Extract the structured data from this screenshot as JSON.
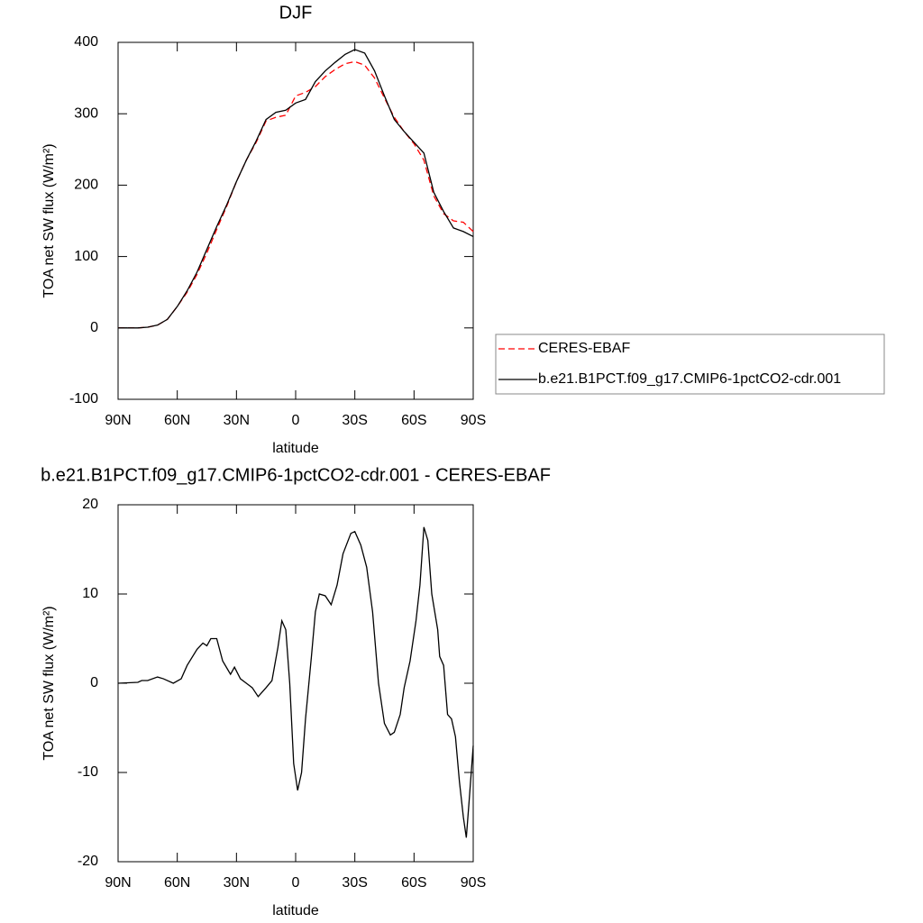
{
  "chart_data": [
    {
      "type": "line",
      "title": "DJF",
      "xlabel": "latitude",
      "ylabel": "TOA net SW flux (W/m²)",
      "x": [
        90,
        85,
        80,
        75,
        70,
        65,
        60,
        55,
        50,
        45,
        40,
        35,
        30,
        25,
        20,
        15,
        10,
        5,
        0,
        -5,
        -10,
        -15,
        -20,
        -25,
        -30,
        -35,
        -40,
        -45,
        -50,
        -55,
        -60,
        -65,
        -70,
        -75,
        -80,
        -85,
        -90
      ],
      "series": [
        {
          "name": "CERES-EBAF",
          "color": "#ff0000",
          "linestyle": "dashed",
          "values": [
            0,
            0,
            0,
            1,
            4,
            12,
            30,
            50,
            75,
            105,
            138,
            170,
            205,
            235,
            260,
            290,
            295,
            298,
            325,
            330,
            338,
            352,
            362,
            370,
            373,
            368,
            350,
            322,
            295,
            275,
            258,
            235,
            185,
            160,
            150,
            148,
            135
          ]
        },
        {
          "name": "b.e21.B1PCT.f09_g17.CMIP6-1pctCO2-cdr.001",
          "color": "#000000",
          "linestyle": "solid",
          "values": [
            0,
            0,
            0,
            1,
            4,
            12,
            30,
            52,
            78,
            110,
            142,
            172,
            205,
            235,
            262,
            292,
            302,
            305,
            315,
            320,
            345,
            360,
            372,
            383,
            390,
            385,
            360,
            325,
            292,
            275,
            260,
            245,
            190,
            163,
            140,
            135,
            128
          ]
        }
      ],
      "xlim": [
        90,
        -90
      ],
      "xticks": [
        {
          "value": 90,
          "label": "90N"
        },
        {
          "value": 60,
          "label": "60N"
        },
        {
          "value": 30,
          "label": "30N"
        },
        0,
        {
          "value": -30,
          "label": "30S"
        },
        {
          "value": -60,
          "label": "60S"
        },
        {
          "value": -90,
          "label": "90S"
        }
      ],
      "ylim": [
        -100,
        400
      ],
      "yticks": [
        -100,
        0,
        100,
        200,
        300,
        400
      ],
      "legend": "right"
    },
    {
      "type": "line",
      "title": "b.e21.B1PCT.f09_g17.CMIP6-1pctCO2-cdr.001 - CERES-EBAF",
      "xlabel": "latitude",
      "ylabel": "TOA net SW flux (W/m²)",
      "x": [
        90,
        80,
        78,
        75,
        70,
        67,
        62,
        58,
        55,
        50,
        47,
        45,
        43,
        40,
        37,
        33,
        31,
        28,
        25,
        22,
        19,
        15,
        12,
        9,
        7,
        5,
        3,
        1,
        -1,
        -3,
        -5,
        -8,
        -10,
        -12,
        -15,
        -18,
        -21,
        -24,
        -28,
        -30,
        -33,
        -36,
        -39,
        -42,
        -45,
        -48,
        -50,
        -53,
        -55,
        -58,
        -61,
        -63,
        -65,
        -67,
        -69,
        -72,
        -73,
        -75,
        -77,
        -79,
        -81,
        -83,
        -85,
        -86.5,
        -88,
        -90
      ],
      "series": [
        {
          "color": "#000000",
          "linestyle": "solid",
          "values": [
            0,
            0.1,
            0.3,
            0.3,
            0.7,
            0.5,
            0,
            0.5,
            2,
            3.8,
            4.5,
            4.2,
            5,
            5,
            2.5,
            1,
            1.8,
            0.5,
            0,
            -0.5,
            -1.5,
            -0.5,
            0.3,
            4,
            7,
            6,
            0,
            -9,
            -12,
            -10,
            -4,
            3,
            8,
            10,
            9.8,
            8.8,
            11,
            14.5,
            16.8,
            17,
            15.5,
            13,
            8,
            0,
            -4.5,
            -5.8,
            -5.5,
            -3.5,
            -0.5,
            2.5,
            7,
            11,
            17.5,
            16,
            10,
            6,
            3,
            2,
            -3.5,
            -4,
            -6,
            -11,
            -15,
            -17.3,
            -13,
            -7
          ]
        }
      ],
      "xlim": [
        90,
        -90
      ],
      "xticks": [
        {
          "value": 90,
          "label": "90N"
        },
        {
          "value": 60,
          "label": "60N"
        },
        {
          "value": 30,
          "label": "30N"
        },
        0,
        {
          "value": -30,
          "label": "30S"
        },
        {
          "value": -60,
          "label": "60S"
        },
        {
          "value": -90,
          "label": "90S"
        }
      ],
      "ylim": [
        -20,
        20
      ],
      "yticks": [
        -20,
        -10,
        0,
        10,
        20
      ]
    }
  ]
}
